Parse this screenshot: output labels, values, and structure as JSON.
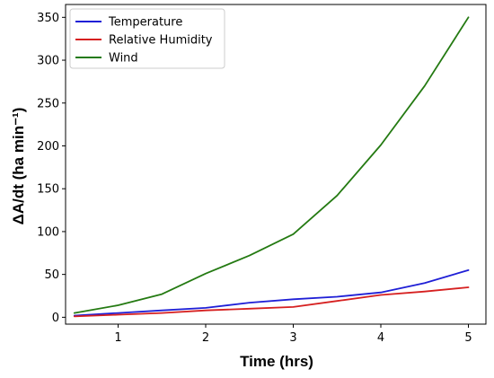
{
  "chart_data": {
    "type": "line",
    "xlabel": "Time (hrs)",
    "ylabel": "ΔA/dt (ha min⁻¹)",
    "xlim": [
      0.4,
      5.2
    ],
    "ylim": [
      -8,
      365
    ],
    "xticks": [
      1,
      2,
      3,
      4,
      5
    ],
    "yticks": [
      0,
      50,
      100,
      150,
      200,
      250,
      300,
      350
    ],
    "grid": false,
    "legend_position": "top-left",
    "x": [
      0.5,
      1,
      1.5,
      2,
      2.5,
      3,
      3.5,
      4,
      4.5,
      5
    ],
    "series": [
      {
        "name": "Temperature",
        "color": "#1f1fd6",
        "values": [
          2,
          5,
          8,
          11,
          17,
          21,
          24,
          29,
          40,
          55
        ]
      },
      {
        "name": "Relative Humidity",
        "color": "#d62020",
        "values": [
          1,
          3,
          5,
          8,
          10,
          12,
          19,
          26,
          30,
          35
        ]
      },
      {
        "name": "Wind",
        "color": "#247a12",
        "values": [
          5,
          14,
          27,
          51,
          72,
          97,
          142,
          201,
          270,
          350
        ]
      }
    ]
  }
}
